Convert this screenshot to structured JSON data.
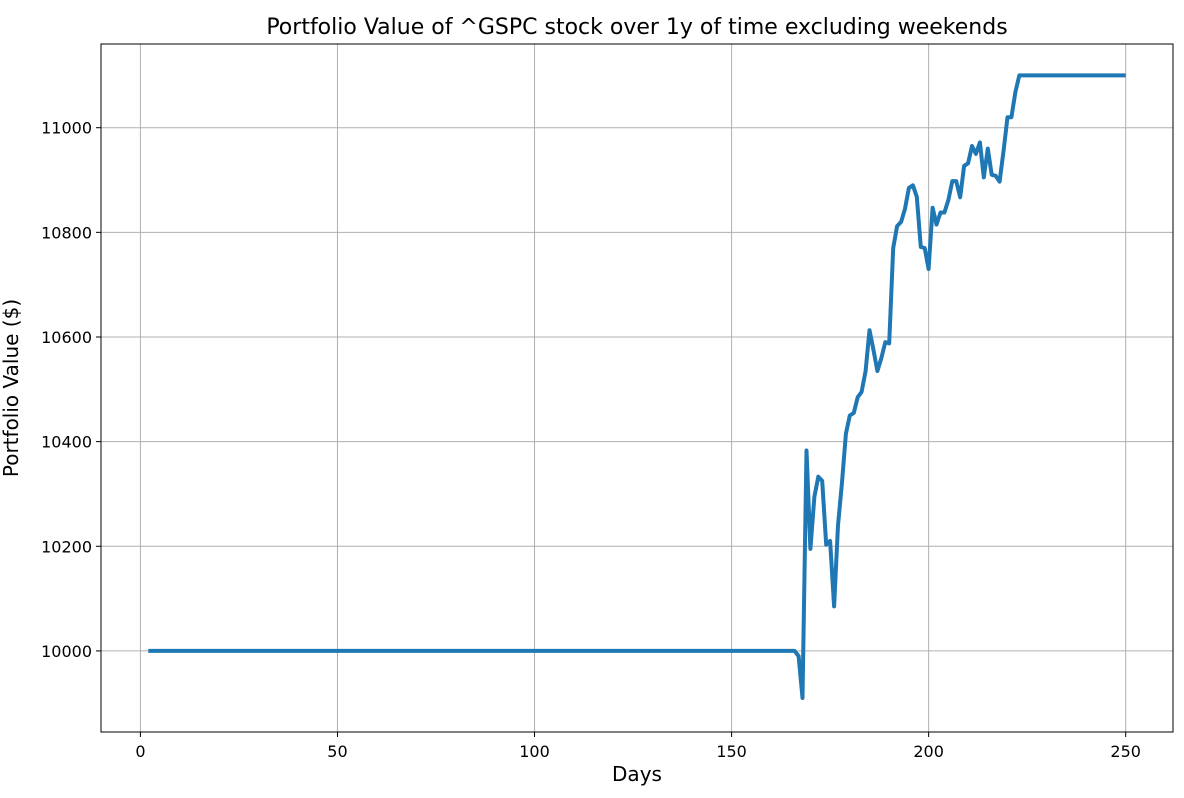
{
  "chart_data": {
    "type": "line",
    "title": "Portfolio Value of ^GSPC stock over 1y of time excluding weekends",
    "xlabel": "Days",
    "ylabel": "Portfolio Value ($)",
    "xlim": [
      -10,
      262
    ],
    "ylim": [
      9845,
      11160
    ],
    "xticks": [
      0,
      50,
      100,
      150,
      200,
      250
    ],
    "yticks": [
      10000,
      10200,
      10400,
      10600,
      10800,
      11000
    ],
    "grid": true,
    "series_color": "#1f77b4",
    "series": [
      {
        "x": [
          2,
          166,
          167,
          168,
          169,
          170,
          171,
          172,
          173,
          174,
          175,
          176,
          177,
          178,
          179,
          180,
          181,
          182,
          183,
          184,
          185,
          186,
          187,
          188,
          189,
          190,
          191,
          192,
          193,
          194,
          195,
          196,
          197,
          198,
          199,
          200,
          201,
          202,
          203,
          204,
          205,
          206,
          207,
          208,
          209,
          210,
          211,
          212,
          213,
          214,
          215,
          216,
          217,
          218,
          219,
          220,
          221,
          222,
          223,
          250
        ],
        "y": [
          10000,
          10000,
          9990,
          9910,
          10383,
          10195,
          10295,
          10333,
          10325,
          10203,
          10210,
          10085,
          10240,
          10320,
          10415,
          10450,
          10455,
          10485,
          10495,
          10535,
          10613,
          10575,
          10535,
          10560,
          10590,
          10588,
          10770,
          10812,
          10820,
          10845,
          10885,
          10890,
          10868,
          10772,
          10770,
          10730,
          10847,
          10815,
          10838,
          10838,
          10862,
          10898,
          10898,
          10867,
          10927,
          10932,
          10965,
          10950,
          10972,
          10905,
          10960,
          10910,
          10908,
          10897,
          10955,
          11020,
          11020,
          11068,
          11100,
          11100
        ]
      }
    ]
  }
}
